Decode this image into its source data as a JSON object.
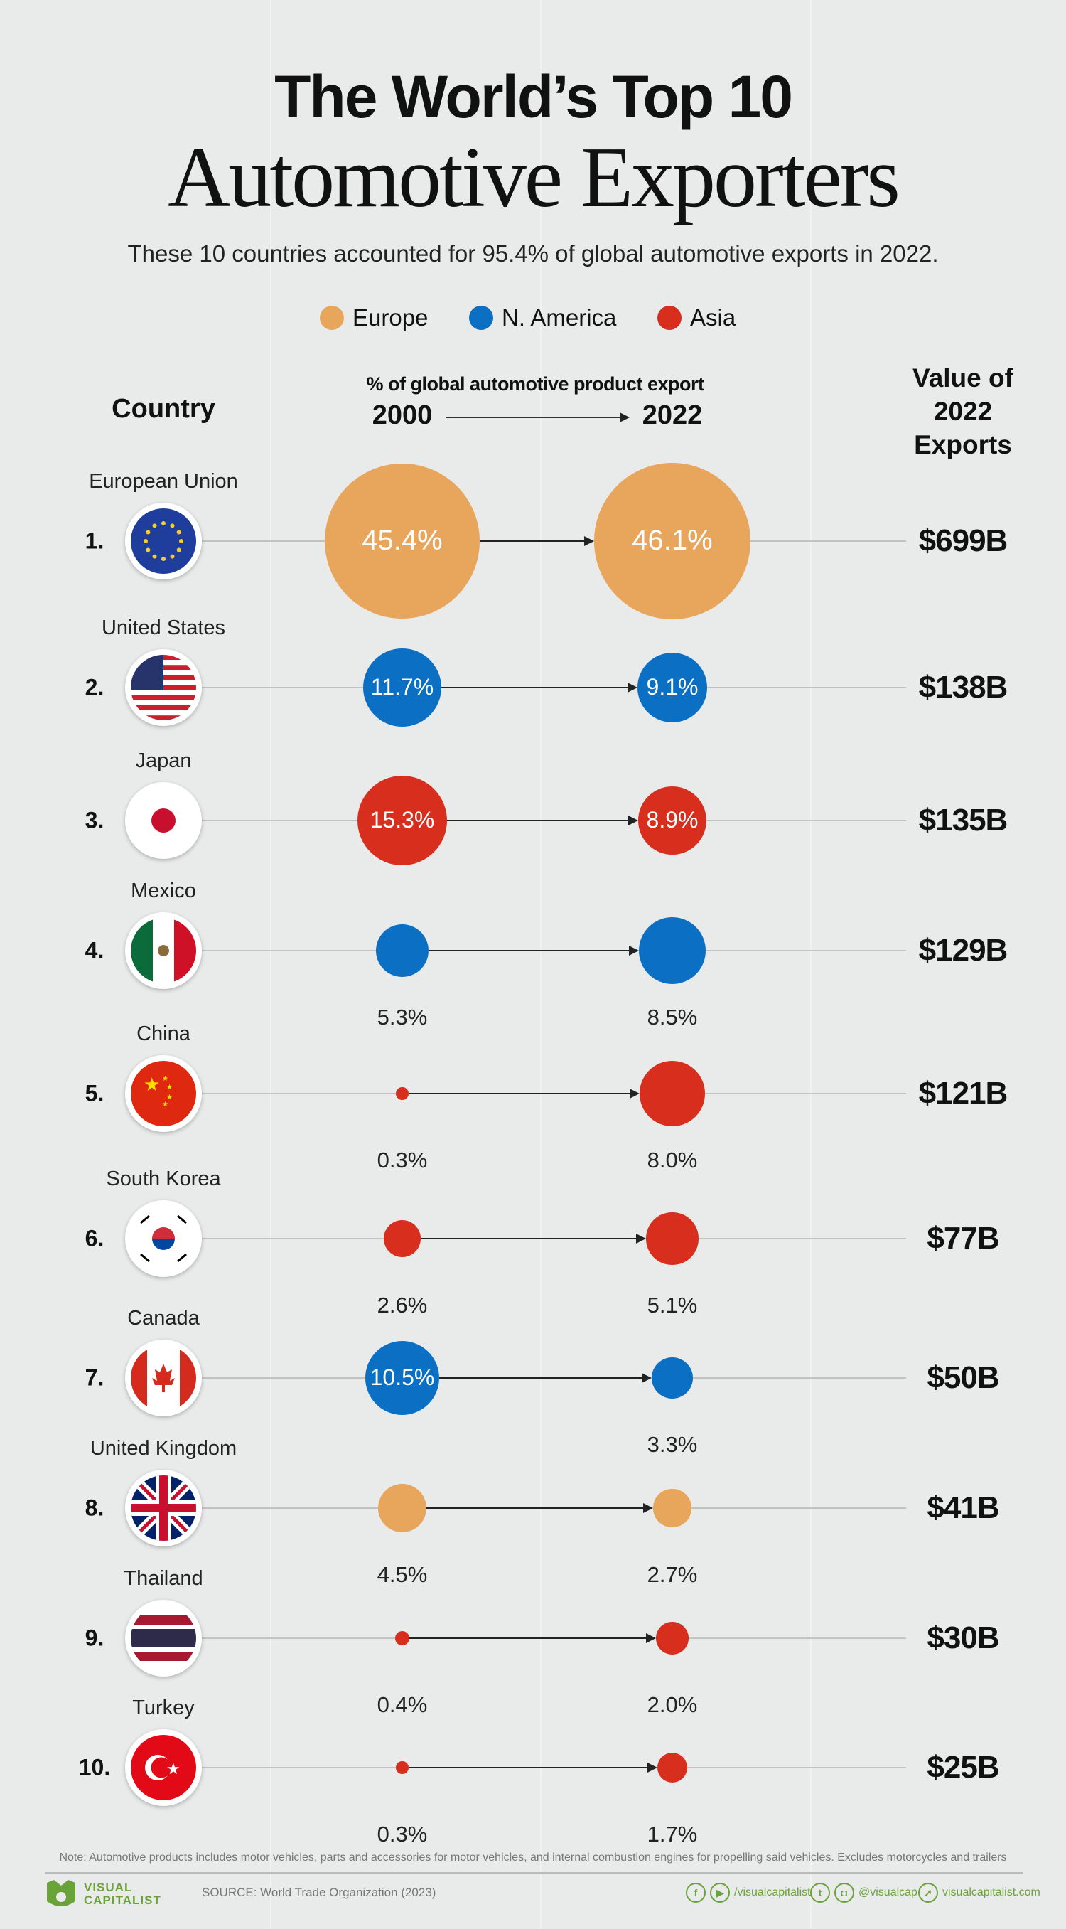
{
  "title_line1": "The World’s Top 10",
  "title_line2": "Automotive Exporters",
  "subtitle": "These 10 countries accounted for 95.4% of global automotive exports in 2022.",
  "legend": [
    {
      "label": "Europe",
      "color": "#E8A65C"
    },
    {
      "label": "N. America",
      "color": "#0B6FC4"
    },
    {
      "label": "Asia",
      "color": "#D72E1E"
    }
  ],
  "headers": {
    "country": "Country",
    "metric": "% of global automotive product export",
    "year_from": "2000",
    "year_to": "2022",
    "value_line1": "Value of",
    "value_line2": "2022",
    "value_line3": "Exports"
  },
  "chart_data": {
    "type": "dot-comparison",
    "title": "The World’s Top 10 Automotive Exporters",
    "subtitle": "These 10 countries accounted for 95.4% of global automotive exports in 2022.",
    "metric": "% of global automotive product export",
    "periods": [
      "2000",
      "2022"
    ],
    "rows": [
      {
        "rank": "1.",
        "country": "European Union",
        "region": "Europe",
        "flag": "eu",
        "pct_2000": 45.4,
        "pct_2022": 46.1,
        "label_2000": "45.4%",
        "label_2022": "46.1%",
        "value_2022": "$699B"
      },
      {
        "rank": "2.",
        "country": "United States",
        "region": "N. America",
        "flag": "us",
        "pct_2000": 11.7,
        "pct_2022": 9.1,
        "label_2000": "11.7%",
        "label_2022": "9.1%",
        "value_2022": "$138B"
      },
      {
        "rank": "3.",
        "country": "Japan",
        "region": "Asia",
        "flag": "jp",
        "pct_2000": 15.3,
        "pct_2022": 8.9,
        "label_2000": "15.3%",
        "label_2022": "8.9%",
        "value_2022": "$135B"
      },
      {
        "rank": "4.",
        "country": "Mexico",
        "region": "N. America",
        "flag": "mx",
        "pct_2000": 5.3,
        "pct_2022": 8.5,
        "label_2000": "5.3%",
        "label_2022": "8.5%",
        "value_2022": "$129B"
      },
      {
        "rank": "5.",
        "country": "China",
        "region": "Asia",
        "flag": "cn",
        "pct_2000": 0.3,
        "pct_2022": 8.0,
        "label_2000": "0.3%",
        "label_2022": "8.0%",
        "value_2022": "$121B"
      },
      {
        "rank": "6.",
        "country": "South Korea",
        "region": "Asia",
        "flag": "kr",
        "pct_2000": 2.6,
        "pct_2022": 5.1,
        "label_2000": "2.6%",
        "label_2022": "5.1%",
        "value_2022": "$77B"
      },
      {
        "rank": "7.",
        "country": "Canada",
        "region": "N. America",
        "flag": "ca",
        "pct_2000": 10.5,
        "pct_2022": 3.3,
        "label_2000": "10.5%",
        "label_2022": "3.3%",
        "value_2022": "$50B"
      },
      {
        "rank": "8.",
        "country": "United Kingdom",
        "region": "Europe",
        "flag": "uk",
        "pct_2000": 4.5,
        "pct_2022": 2.7,
        "label_2000": "4.5%",
        "label_2022": "2.7%",
        "value_2022": "$41B"
      },
      {
        "rank": "9.",
        "country": "Thailand",
        "region": "Asia",
        "flag": "th",
        "pct_2000": 0.4,
        "pct_2022": 2.0,
        "label_2000": "0.4%",
        "label_2022": "2.0%",
        "value_2022": "$30B"
      },
      {
        "rank": "10.",
        "country": "Turkey",
        "region": "Asia",
        "flag": "tr",
        "pct_2000": 0.3,
        "pct_2022": 1.7,
        "label_2000": "0.3%",
        "label_2022": "1.7%",
        "value_2022": "$25B"
      }
    ]
  },
  "footer": {
    "note": "Note: Automotive products includes motor vehicles, parts and accessories for motor vehicles, and internal combustion engines for propelling said vehicles. Excludes motorcycles and trailers",
    "source": "SOURCE: World Trade Organization (2023)",
    "logo_line1": "VISUAL",
    "logo_line2": "CAPITALIST",
    "social_facebook_youtube": "/visualcapitalist",
    "social_twitter_instagram": "@visualcap",
    "website": "visualcapitalist.com"
  }
}
